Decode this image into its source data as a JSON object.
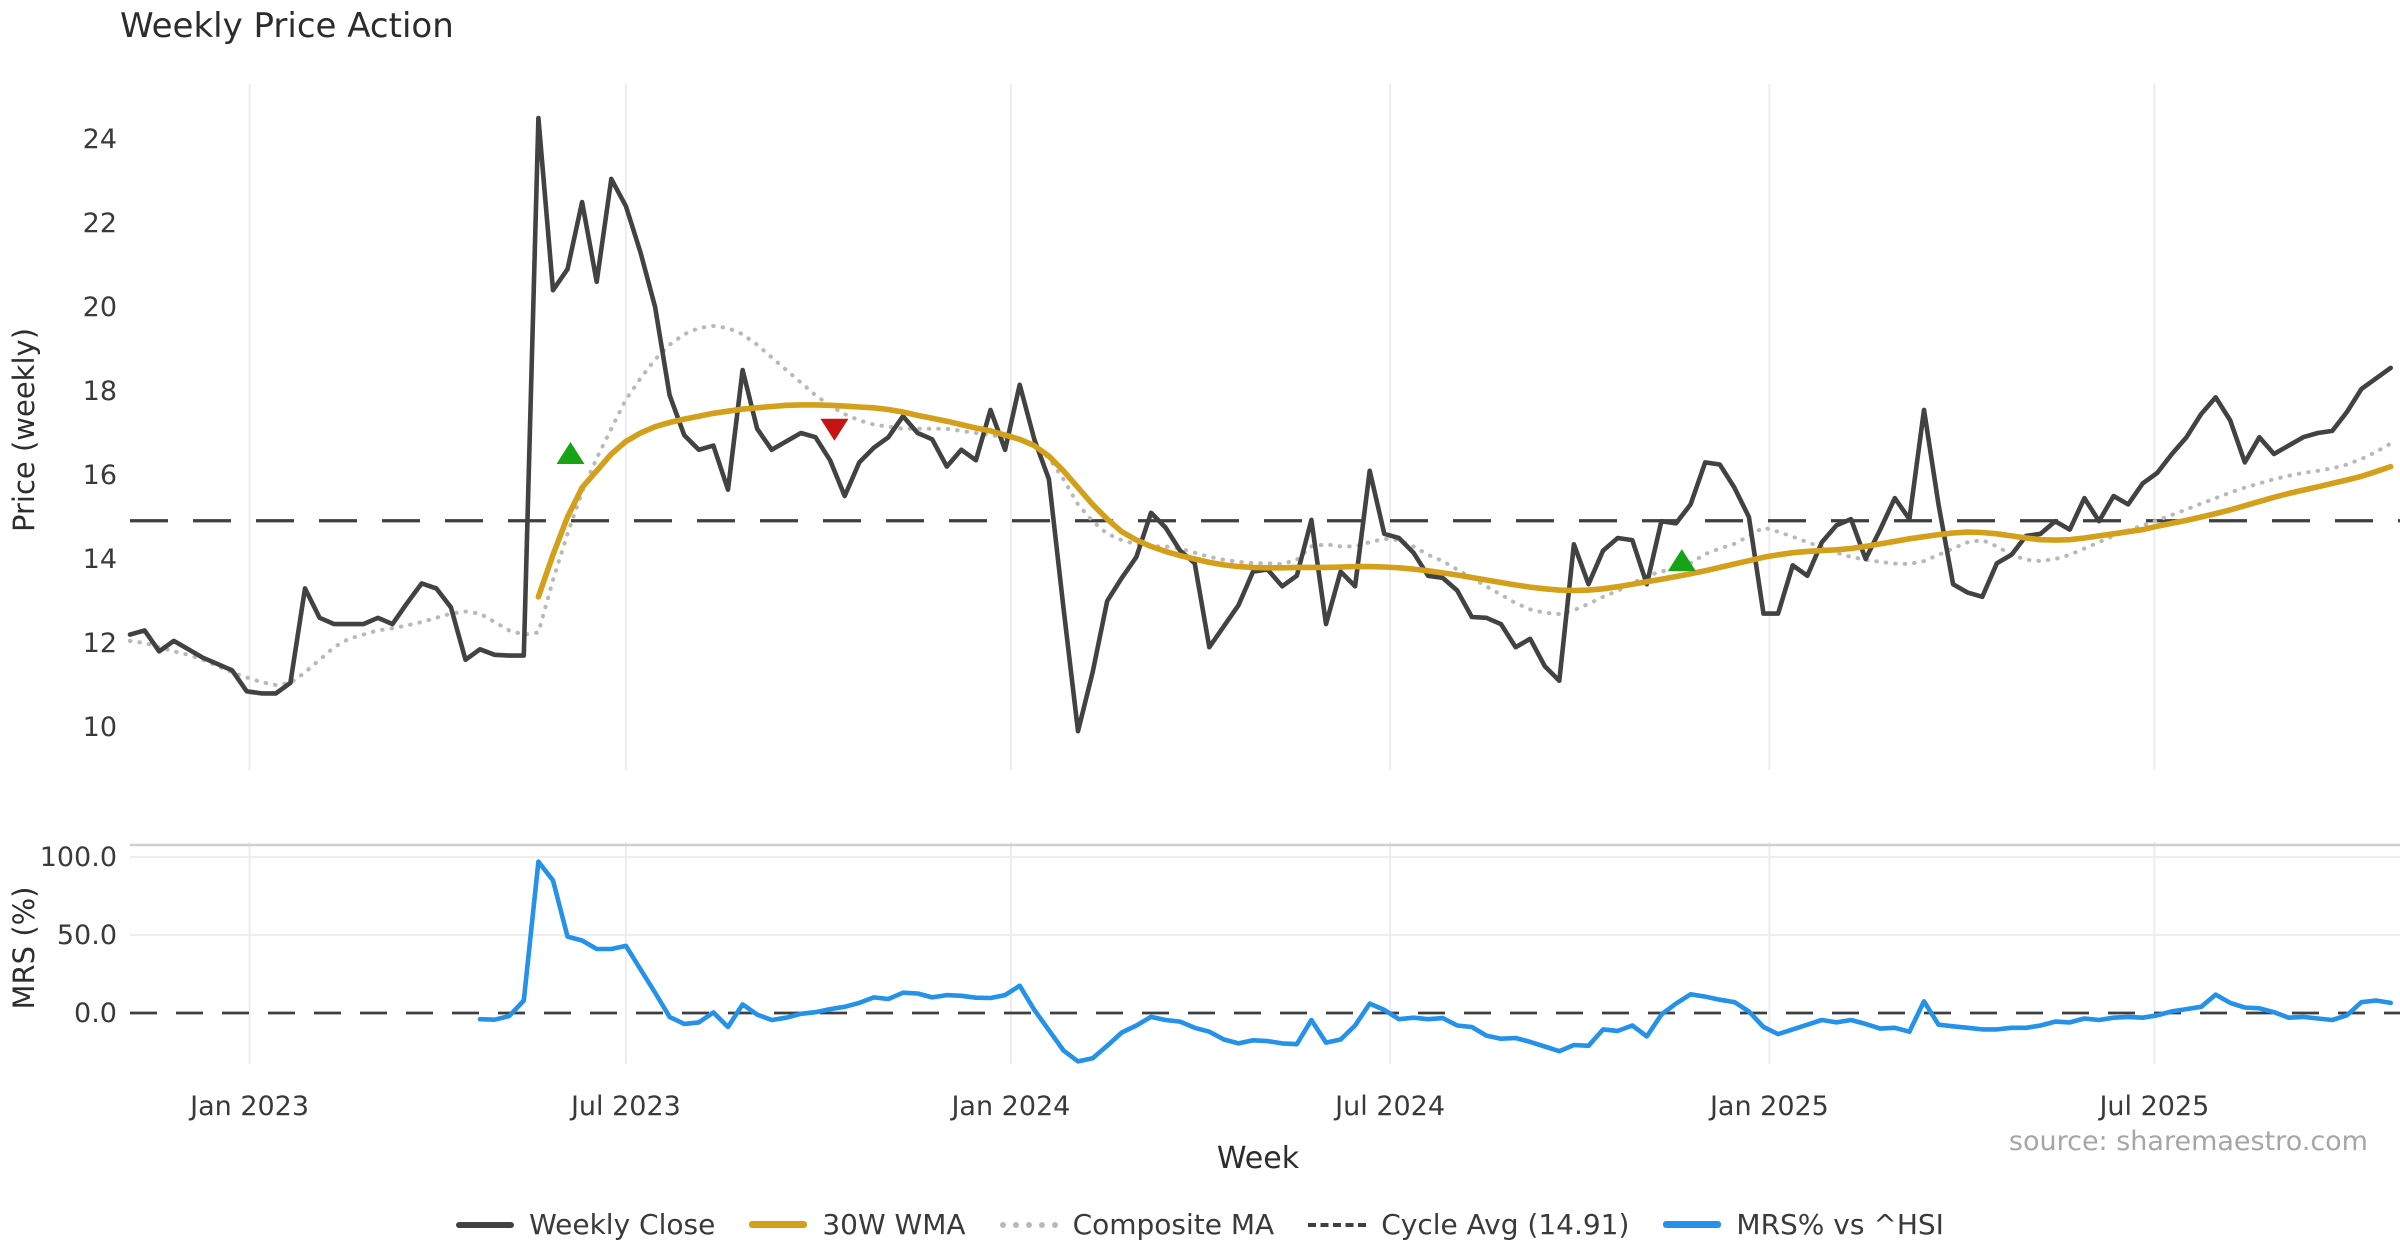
{
  "title": "Weekly Price Action",
  "source_note": "source: sharemaestro.com",
  "colors": {
    "weekly_close": "#424242",
    "wma_30w": "#d4a01b",
    "composite_ma": "#b9b9b9",
    "cycle_avg": "#3f3f3f",
    "mrs": "#2492e8",
    "buy_marker": "#16a316",
    "sell_marker": "#c41414",
    "grid": "#e9ecf3",
    "subgrid": "#ededed",
    "tick_text": "#3a3a3a",
    "muted_text": "#a6a6a6"
  },
  "legend": [
    {
      "label": "Weekly Close",
      "style": "close"
    },
    {
      "label": "30W WMA",
      "style": "wma"
    },
    {
      "label": "Composite MA",
      "style": "composite"
    },
    {
      "label": "Cycle Avg (14.91)",
      "style": "cycle"
    },
    {
      "label": "MRS% vs ^HSI",
      "style": "mrs"
    }
  ],
  "chart_data": [
    {
      "type": "line",
      "id": "price-panel",
      "title": "Weekly Price Action",
      "ylabel": "Price (weekly)",
      "ylim": [
        8.95,
        25.3
      ],
      "yticks": [
        10,
        12,
        14,
        16,
        18,
        20,
        22,
        24
      ],
      "grid": "vertical-only",
      "cycle_avg": 14.91,
      "x_unit": "week-index (0 = first plotted week, late Oct 2022)",
      "x_ticks": {
        "labels": [
          "Jan 2023",
          "Jul 2023",
          "Jan 2024",
          "Jul 2024",
          "Jan 2025",
          "Jul 2025"
        ],
        "week_positions": [
          8.2,
          34.0,
          60.4,
          86.4,
          112.4,
          138.8
        ]
      },
      "series": [
        {
          "name": "Weekly Close",
          "start_week": 0,
          "values": [
            12.2,
            12.3,
            11.8,
            12.05,
            11.85,
            11.65,
            11.5,
            11.35,
            10.85,
            10.8,
            10.8,
            11.05,
            13.3,
            12.6,
            12.45,
            12.45,
            12.45,
            12.6,
            12.45,
            12.95,
            13.42,
            13.3,
            12.85,
            11.6,
            11.85,
            11.72,
            11.7,
            11.7,
            24.5,
            20.4,
            20.9,
            22.5,
            20.6,
            23.05,
            22.4,
            21.3,
            20.0,
            17.9,
            16.95,
            16.6,
            16.7,
            15.65,
            18.5,
            17.1,
            16.6,
            16.8,
            17.0,
            16.9,
            16.35,
            15.5,
            16.3,
            16.65,
            16.9,
            17.4,
            17.0,
            16.85,
            16.2,
            16.6,
            16.35,
            17.55,
            16.6,
            18.15,
            16.85,
            15.9,
            12.85,
            9.9,
            11.3,
            13.0,
            13.55,
            14.05,
            15.1,
            14.75,
            14.2,
            13.9,
            11.9,
            12.4,
            12.9,
            13.7,
            13.75,
            13.35,
            13.6,
            14.93,
            12.45,
            13.7,
            13.35,
            16.1,
            14.6,
            14.5,
            14.15,
            13.6,
            13.55,
            13.25,
            12.62,
            12.6,
            12.45,
            11.9,
            12.1,
            11.45,
            11.1,
            14.35,
            13.4,
            14.2,
            14.5,
            14.45,
            13.4,
            14.9,
            14.85,
            15.3,
            16.3,
            16.25,
            15.7,
            15.0,
            12.7,
            12.7,
            13.85,
            13.6,
            14.4,
            14.8,
            14.95,
            14.0,
            14.7,
            15.45,
            14.95,
            17.55,
            15.3,
            13.4,
            13.2,
            13.1,
            13.9,
            14.1,
            14.55,
            14.6,
            14.9,
            14.7,
            15.45,
            14.9,
            15.5,
            15.3,
            15.8,
            16.05,
            16.5,
            16.9,
            17.45,
            17.85,
            17.3,
            16.3,
            16.9,
            16.5,
            16.7,
            16.9,
            17.0,
            17.05,
            17.5,
            18.05,
            18.3,
            18.55
          ]
        },
        {
          "name": "30W WMA",
          "start_week": 28,
          "values": [
            13.1,
            14.1,
            15.0,
            15.7,
            16.1,
            16.5,
            16.8,
            17.0,
            17.15,
            17.25,
            17.33,
            17.4,
            17.47,
            17.52,
            17.57,
            17.6,
            17.63,
            17.66,
            17.67,
            17.67,
            17.66,
            17.64,
            17.62,
            17.6,
            17.56,
            17.5,
            17.42,
            17.35,
            17.28,
            17.2,
            17.12,
            17.05,
            16.95,
            16.85,
            16.7,
            16.45,
            16.1,
            15.7,
            15.3,
            14.95,
            14.65,
            14.45,
            14.3,
            14.18,
            14.08,
            14.0,
            13.92,
            13.86,
            13.82,
            13.8,
            13.79,
            13.79,
            13.8,
            13.8,
            13.8,
            13.81,
            13.82,
            13.82,
            13.81,
            13.79,
            13.76,
            13.72,
            13.67,
            13.62,
            13.56,
            13.5,
            13.44,
            13.38,
            13.33,
            13.29,
            13.26,
            13.25,
            13.26,
            13.29,
            13.34,
            13.4,
            13.46,
            13.52,
            13.58,
            13.65,
            13.72,
            13.8,
            13.88,
            13.96,
            14.04,
            14.1,
            14.15,
            14.18,
            14.2,
            14.22,
            14.25,
            14.3,
            14.36,
            14.42,
            14.48,
            14.53,
            14.58,
            14.62,
            14.64,
            14.63,
            14.6,
            14.55,
            14.5,
            14.46,
            14.45,
            14.46,
            14.5,
            14.55,
            14.6,
            14.65,
            14.7,
            14.78,
            14.85,
            14.92,
            15.0,
            15.08,
            15.17,
            15.27,
            15.37,
            15.47,
            15.56,
            15.64,
            15.72,
            15.8,
            15.88,
            15.97,
            16.08,
            16.2
          ]
        },
        {
          "name": "Composite MA",
          "start_week": 0,
          "values": [
            12.05,
            12.0,
            11.9,
            11.8,
            11.72,
            11.6,
            11.45,
            11.3,
            11.18,
            11.07,
            11.0,
            11.05,
            11.3,
            11.6,
            11.9,
            12.1,
            12.2,
            12.3,
            12.35,
            12.42,
            12.5,
            12.6,
            12.7,
            12.75,
            12.7,
            12.5,
            12.3,
            12.2,
            12.25,
            13.5,
            14.6,
            15.6,
            16.4,
            17.1,
            17.8,
            18.3,
            18.75,
            19.1,
            19.35,
            19.5,
            19.55,
            19.5,
            19.35,
            19.1,
            18.8,
            18.5,
            18.2,
            17.9,
            17.65,
            17.45,
            17.3,
            17.2,
            17.15,
            17.1,
            17.1,
            17.1,
            17.1,
            17.05,
            17.0,
            16.95,
            16.9,
            16.85,
            16.7,
            16.4,
            15.9,
            15.3,
            14.9,
            14.6,
            14.45,
            14.35,
            14.3,
            14.3,
            14.25,
            14.15,
            14.05,
            13.98,
            13.93,
            13.9,
            13.9,
            13.88,
            13.98,
            14.3,
            14.35,
            14.3,
            14.3,
            14.4,
            14.48,
            14.45,
            14.3,
            14.1,
            13.95,
            13.75,
            13.55,
            13.35,
            13.15,
            12.95,
            12.8,
            12.72,
            12.69,
            12.78,
            12.93,
            13.1,
            13.24,
            13.42,
            13.6,
            13.7,
            13.79,
            13.9,
            14.12,
            14.25,
            14.36,
            14.55,
            14.75,
            14.65,
            14.53,
            14.4,
            14.28,
            14.15,
            14.05,
            13.98,
            13.93,
            13.89,
            13.88,
            13.95,
            14.1,
            14.25,
            14.4,
            14.45,
            14.3,
            14.1,
            13.98,
            13.95,
            14.0,
            14.1,
            14.25,
            14.4,
            14.55,
            14.68,
            14.8,
            14.92,
            15.05,
            15.18,
            15.32,
            15.45,
            15.58,
            15.7,
            15.8,
            15.9,
            15.98,
            16.05,
            16.1,
            16.16,
            16.25,
            16.38,
            16.55,
            16.75
          ]
        }
      ],
      "markers": [
        {
          "shape": "triangle-up",
          "meaning": "buy-signal",
          "week": 30.2,
          "value": 16.5
        },
        {
          "shape": "triangle-down",
          "meaning": "sell-signal",
          "week": 48.3,
          "value": 17.1
        },
        {
          "shape": "triangle-up",
          "meaning": "buy-signal",
          "week": 106.4,
          "value": 13.95
        }
      ]
    },
    {
      "type": "line",
      "id": "mrs-panel",
      "ylabel": "MRS (%)",
      "xlabel": "Week",
      "ylim": [
        -33,
        110
      ],
      "yticks": [
        0,
        50,
        100
      ],
      "ytick_labels": [
        "0.0",
        "50.0",
        "100.0"
      ],
      "zero_line_dashed": 0,
      "series": [
        {
          "name": "MRS% vs ^HSI",
          "start_week": 24,
          "values": [
            -4,
            -4.3,
            -2,
            8,
            97,
            85,
            49,
            46.5,
            41,
            41,
            43,
            28,
            13,
            -2.5,
            -7,
            -6,
            0.3,
            -9,
            5.5,
            -1,
            -4.5,
            -3,
            -0.5,
            0.5,
            2.5,
            4,
            6.5,
            10,
            9,
            13,
            12.5,
            10,
            11.5,
            11,
            9.8,
            9.6,
            11.5,
            17.5,
            2,
            -11,
            -24,
            -31,
            -29,
            -21,
            -12.5,
            -8,
            -2.5,
            -4.5,
            -5.5,
            -9.5,
            -12,
            -17,
            -19.5,
            -17.5,
            -18,
            -19.5,
            -20,
            -4.5,
            -19,
            -17,
            -8,
            6,
            2,
            -4,
            -3,
            -4,
            -3.3,
            -8,
            -9,
            -14.5,
            -16.5,
            -16,
            -18.5,
            -21.5,
            -24.5,
            -20.5,
            -21,
            -10.5,
            -11.5,
            -8,
            -15,
            -1,
            6,
            12,
            10.5,
            8.5,
            7,
            1,
            -9,
            -13.5,
            -10.5,
            -7.5,
            -4.5,
            -6,
            -4.5,
            -7,
            -10,
            -9.5,
            -12,
            7.5,
            -7.5,
            -8.5,
            -9.5,
            -10.5,
            -10.5,
            -9.5,
            -9.5,
            -8,
            -5.5,
            -6,
            -3.5,
            -4.5,
            -3,
            -2.5,
            -3,
            -1.5,
            1,
            2.5,
            4,
            11.8,
            6.5,
            3.5,
            3,
            0.5,
            -3,
            -2.5,
            -3.5,
            -4.5,
            -1.5,
            7,
            8,
            6.5
          ]
        }
      ]
    }
  ]
}
